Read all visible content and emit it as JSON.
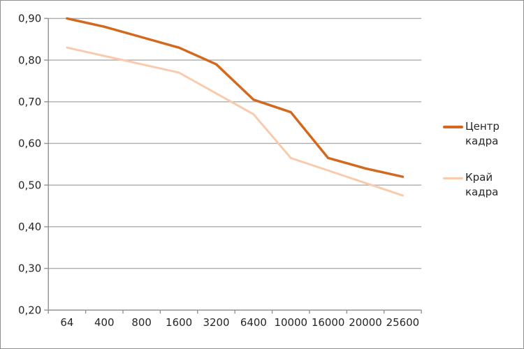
{
  "chart_data": {
    "type": "line",
    "title": "",
    "xlabel": "",
    "ylabel": "",
    "categories": [
      "64",
      "400",
      "800",
      "1600",
      "3200",
      "6400",
      "10000",
      "16000",
      "20000",
      "25600"
    ],
    "series": [
      {
        "name": "Центр кадра",
        "color": "#d2691e",
        "stroke_width": 3.5,
        "values": [
          0.9,
          0.88,
          0.855,
          0.83,
          0.79,
          0.705,
          0.675,
          0.565,
          0.54,
          0.52
        ]
      },
      {
        "name": "Край кадра",
        "color": "#f8cbad",
        "stroke_width": 3,
        "values": [
          0.83,
          0.81,
          0.79,
          0.77,
          0.72,
          0.67,
          0.565,
          0.535,
          0.505,
          0.475
        ]
      }
    ],
    "ylim": [
      0.2,
      0.9
    ],
    "y_ticks": [
      {
        "label": "0,90",
        "value": 0.9
      },
      {
        "label": "0,80",
        "value": 0.8
      },
      {
        "label": "0,70",
        "value": 0.7
      },
      {
        "label": "0,60",
        "value": 0.6
      },
      {
        "label": "0,50",
        "value": 0.5
      },
      {
        "label": "0,40",
        "value": 0.4
      },
      {
        "label": "0,30",
        "value": 0.3
      },
      {
        "label": "0,20",
        "value": 0.2
      }
    ],
    "grid": true,
    "legend_position": "right"
  },
  "style": {
    "gridline_color": "#acacac",
    "axis_color": "#909090",
    "tick_label_color": "#262626",
    "background_color": "#ffffff"
  }
}
